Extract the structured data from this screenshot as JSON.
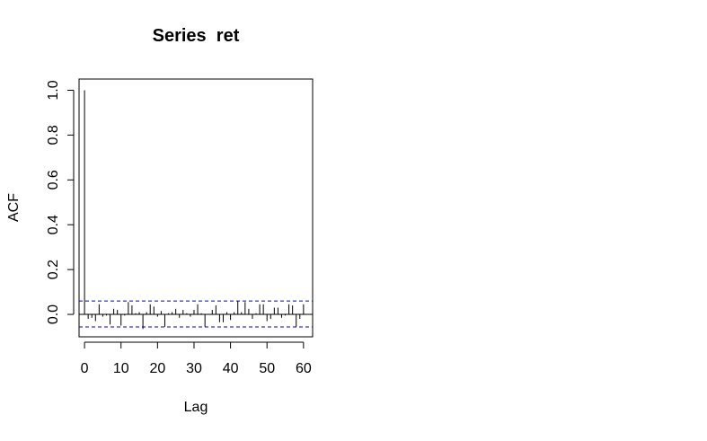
{
  "chart_data": {
    "type": "bar",
    "title": "Series  ret",
    "xlabel": "Lag",
    "ylabel": "ACF",
    "xlim": [
      -1.5,
      62.5
    ],
    "ylim": [
      -0.1,
      1.05
    ],
    "xticks": [
      0,
      10,
      20,
      30,
      40,
      50,
      60
    ],
    "yticks": [
      0.0,
      0.2,
      0.4,
      0.6,
      0.8,
      1.0
    ],
    "xtick_labels": [
      "0",
      "10",
      "20",
      "30",
      "40",
      "50",
      "60"
    ],
    "ytick_labels": [
      "0.0",
      "0.2",
      "0.4",
      "0.6",
      "0.8",
      "1.0"
    ],
    "confidence_bounds": [
      0.06,
      -0.056
    ],
    "bound_color": "#0000cc",
    "bar_color": "#000000",
    "zero_line": true,
    "x": [
      0,
      1,
      2,
      3,
      4,
      5,
      6,
      7,
      8,
      9,
      10,
      11,
      12,
      13,
      14,
      15,
      16,
      17,
      18,
      19,
      20,
      21,
      22,
      23,
      24,
      25,
      26,
      27,
      28,
      29,
      30,
      31,
      32,
      33,
      34,
      35,
      36,
      37,
      38,
      39,
      40,
      41,
      42,
      43,
      44,
      45,
      46,
      47,
      48,
      49,
      50,
      51,
      52,
      53,
      54,
      55,
      56,
      57,
      58,
      59,
      60
    ],
    "values": [
      1.0,
      -0.02,
      -0.015,
      -0.03,
      0.045,
      -0.01,
      -0.005,
      -0.045,
      0.025,
      0.02,
      -0.05,
      -0.005,
      0.055,
      0.04,
      0.005,
      0.01,
      -0.065,
      0.01,
      0.045,
      0.035,
      -0.01,
      0.015,
      -0.055,
      0.005,
      0.01,
      0.025,
      -0.015,
      0.02,
      0.005,
      -0.01,
      0.02,
      0.045,
      0.005,
      -0.055,
      0.0,
      0.02,
      0.04,
      -0.035,
      -0.035,
      0.01,
      -0.025,
      0.01,
      0.06,
      0.01,
      0.055,
      0.025,
      -0.02,
      0.005,
      0.045,
      0.045,
      -0.03,
      -0.02,
      0.03,
      0.03,
      -0.015,
      -0.005,
      0.045,
      0.04,
      -0.055,
      -0.02,
      0.045
    ]
  }
}
